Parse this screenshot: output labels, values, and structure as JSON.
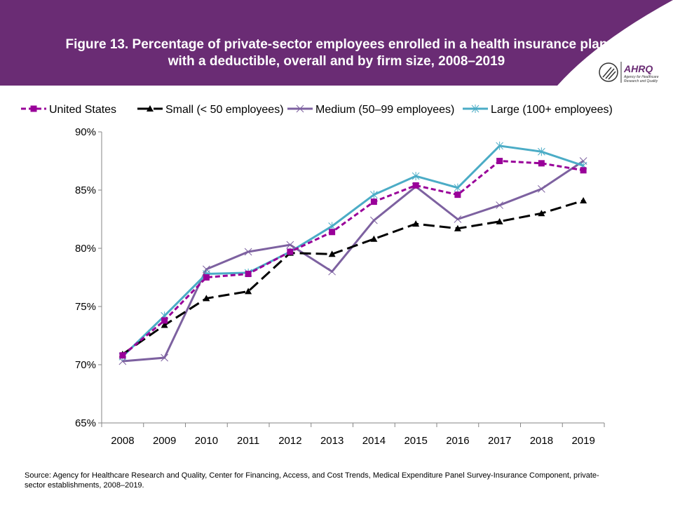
{
  "colors": {
    "header": "#6a2c74",
    "us": "#990099",
    "small": "#000000",
    "medium": "#7d61a0",
    "large": "#4bacc6"
  },
  "logo": {
    "text": "AHRQ",
    "subtitle": "Agency for Healthcare Research and Quality",
    "icon": "hhs-eagle-icon"
  },
  "source": "Source: Agency for Healthcare Research and Quality, Center for Financing, Access, and Cost Trends, Medical Expenditure Panel Survey-Insurance Component, private-sector establishments, 2008–2019.",
  "chart_data": {
    "type": "line",
    "title": "Figure 13. Percentage of private-sector employees enrolled in a health insurance plan with a deductible, overall and by firm size, 2008–2019",
    "categories": [
      "2008",
      "2009",
      "2010",
      "2011",
      "2012",
      "2013",
      "2014",
      "2015",
      "2016",
      "2017",
      "2018",
      "2019"
    ],
    "ylim": [
      65,
      90
    ],
    "yticks": [
      "65%",
      "70%",
      "75%",
      "80%",
      "85%",
      "90%"
    ],
    "ytick_values": [
      65,
      70,
      75,
      80,
      85,
      90
    ],
    "legend_position": "top",
    "grid": false,
    "series": [
      {
        "name": "United States",
        "key": "us",
        "marker": "square",
        "dash": "short",
        "values": [
          70.8,
          73.8,
          77.5,
          77.8,
          79.7,
          81.4,
          84.0,
          85.4,
          84.6,
          87.5,
          87.3,
          86.7
        ]
      },
      {
        "name": "Small (< 50 employees)",
        "key": "small",
        "marker": "triangle",
        "dash": "long",
        "values": [
          70.9,
          73.4,
          75.7,
          76.3,
          79.6,
          79.5,
          80.8,
          82.1,
          81.7,
          82.3,
          83.0,
          84.1
        ]
      },
      {
        "name": "Medium (50–99 employees)",
        "key": "medium",
        "marker": "x",
        "dash": "solid",
        "values": [
          70.3,
          70.6,
          78.2,
          79.7,
          80.3,
          78.0,
          82.4,
          85.3,
          82.5,
          83.7,
          85.1,
          87.5
        ]
      },
      {
        "name": "Large (100+ employees)",
        "key": "large",
        "marker": "star",
        "dash": "solid",
        "values": [
          70.7,
          74.2,
          77.8,
          77.9,
          79.7,
          81.9,
          84.6,
          86.2,
          85.2,
          88.8,
          88.3,
          87.1
        ]
      }
    ]
  }
}
